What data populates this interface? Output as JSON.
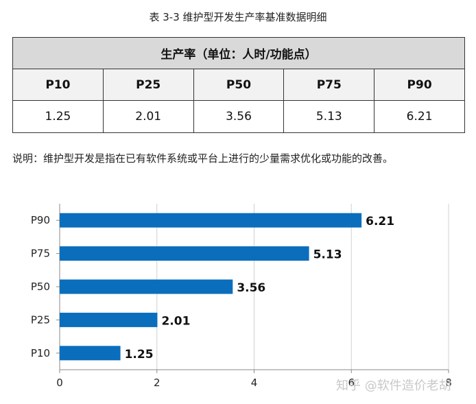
{
  "caption": "表 3-3  维护型开发生产率基准数据明细",
  "table": {
    "header": "生产率（单位：人时/功能点）",
    "columns": [
      "P10",
      "P25",
      "P50",
      "P75",
      "P90"
    ],
    "values": [
      "1.25",
      "2.01",
      "3.56",
      "5.13",
      "6.21"
    ]
  },
  "note": "说明：维护型开发是指在已有软件系统或平台上进行的少量需求优化或功能的改善。",
  "watermark": "知乎 @软件造价老胡",
  "colors": {
    "bar": "#0a6ebd",
    "grid": "#d0d0d0",
    "axis": "#888888"
  },
  "chart_data": {
    "type": "bar",
    "orientation": "horizontal",
    "categories": [
      "P90",
      "P75",
      "P50",
      "P25",
      "P10"
    ],
    "values": [
      6.21,
      5.13,
      3.56,
      2.01,
      1.25
    ],
    "data_labels": [
      "6.21",
      "5.13",
      "3.56",
      "2.01",
      "1.25"
    ],
    "xlim": [
      0,
      8
    ],
    "xticks": [
      0,
      2,
      4,
      6,
      8
    ],
    "title": "",
    "xlabel": "",
    "ylabel": "",
    "grid": true
  }
}
